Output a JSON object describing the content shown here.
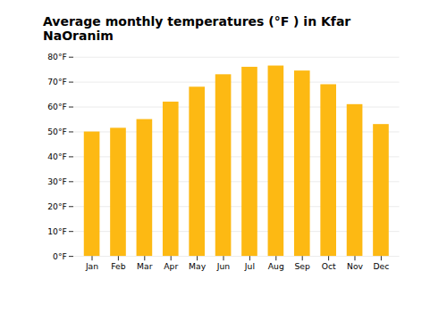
{
  "chart_data": {
    "type": "bar",
    "title": "Average monthly temperatures (°F ) in Kfar NaOranim",
    "categories": [
      "Jan",
      "Feb",
      "Mar",
      "Apr",
      "May",
      "Jun",
      "Jul",
      "Aug",
      "Sep",
      "Oct",
      "Nov",
      "Dec"
    ],
    "values": [
      50,
      51.5,
      55,
      62,
      68,
      73,
      76,
      76.5,
      74.5,
      69,
      61,
      53
    ],
    "color": "#FDB913",
    "ylim": [
      0,
      80
    ],
    "yticks": [
      {
        "value": 0,
        "label": "0°F"
      },
      {
        "value": 10,
        "label": "10°F"
      },
      {
        "value": 20,
        "label": "20°F"
      },
      {
        "value": 30,
        "label": "30°F"
      },
      {
        "value": 40,
        "label": "40°F"
      },
      {
        "value": 50,
        "label": "50°F"
      },
      {
        "value": 60,
        "label": "60°F"
      },
      {
        "value": 70,
        "label": "70°F"
      },
      {
        "value": 80,
        "label": "80°F"
      }
    ],
    "grid": true
  }
}
